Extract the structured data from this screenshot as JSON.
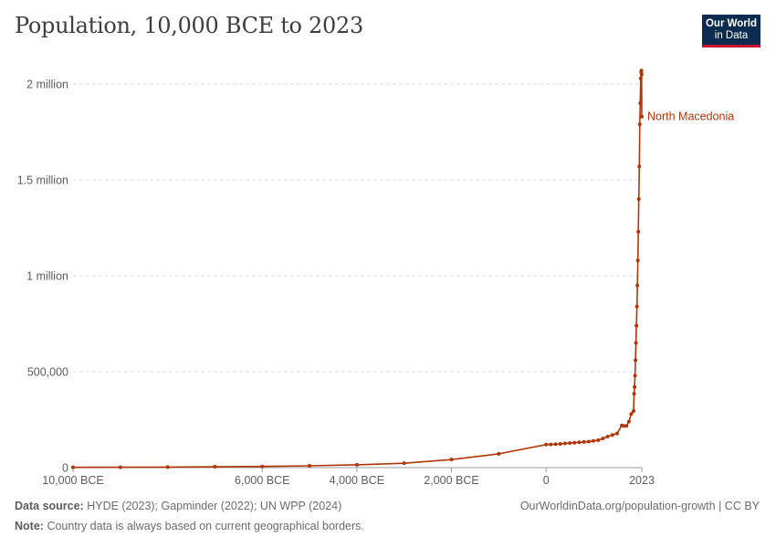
{
  "title": "Population, 10,000 BCE to 2023",
  "logo": {
    "line1": "Our World",
    "line2": "in Data"
  },
  "footer": {
    "source_label": "Data source:",
    "source_text": "HYDE (2023); Gapminder (2022); UN WPP (2024)",
    "note_label": "Note:",
    "note_text": "Country data is always based on current geographical borders.",
    "url": "OurWorldinData.org/population-growth | CC BY"
  },
  "colors": {
    "series": "#b13507",
    "grid": "#dddddd",
    "axis": "#999999",
    "text": "#5b5b5b"
  },
  "chart_data": {
    "type": "line",
    "title": "Population, 10,000 BCE to 2023",
    "xlim": [
      -10000,
      2023
    ],
    "ylim": [
      0,
      2000000
    ],
    "x_ticks": [
      {
        "value": -10000,
        "label": "10,000 BCE"
      },
      {
        "value": -6000,
        "label": "6,000 BCE"
      },
      {
        "value": -4000,
        "label": "4,000 BCE"
      },
      {
        "value": -2000,
        "label": "2,000 BCE"
      },
      {
        "value": 0,
        "label": "0"
      },
      {
        "value": 2023,
        "label": "2023"
      }
    ],
    "y_ticks": [
      {
        "value": 0,
        "label": "0"
      },
      {
        "value": 500000,
        "label": "500,000"
      },
      {
        "value": 1000000,
        "label": "1 million"
      },
      {
        "value": 1500000,
        "label": "1.5 million"
      },
      {
        "value": 2000000,
        "label": "2 million"
      }
    ],
    "grid": true,
    "series": [
      {
        "name": "North Macedonia",
        "x": [
          -10000,
          -9000,
          -8000,
          -7000,
          -6000,
          -5000,
          -4000,
          -3000,
          -2000,
          -1000,
          0,
          100,
          200,
          300,
          400,
          500,
          600,
          700,
          800,
          900,
          1000,
          1100,
          1200,
          1300,
          1400,
          1500,
          1600,
          1650,
          1700,
          1750,
          1800,
          1850,
          1860,
          1870,
          1880,
          1890,
          1900,
          1910,
          1920,
          1930,
          1940,
          1950,
          1960,
          1970,
          1980,
          1990,
          2000,
          2010,
          2015,
          2020,
          2023
        ],
        "values": [
          1500,
          2000,
          3000,
          4500,
          6000,
          9500,
          15000,
          23000,
          42000,
          72000,
          120000,
          121000,
          122000,
          124000,
          126000,
          128000,
          130000,
          132000,
          134000,
          136000,
          139000,
          143000,
          152000,
          162000,
          170000,
          178000,
          220000,
          217000,
          218000,
          240000,
          280000,
          295000,
          385000,
          420000,
          480000,
          560000,
          650000,
          740000,
          840000,
          950000,
          1080000,
          1230000,
          1400000,
          1570000,
          1790000,
          1900000,
          2030000,
          2060000,
          2070000,
          2050000,
          1830000
        ]
      }
    ]
  }
}
